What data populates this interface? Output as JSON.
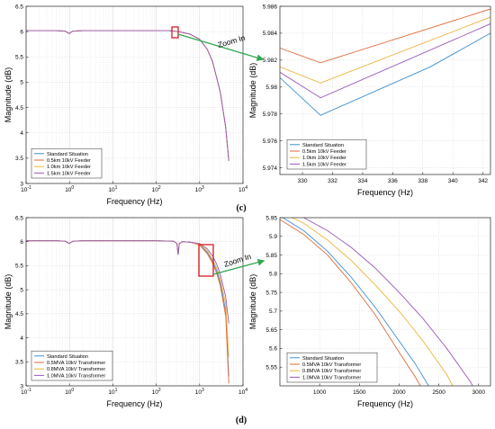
{
  "figure": {
    "panel_labels": {
      "c": "(c)",
      "d": "(d)"
    },
    "zoom_text": "Zoom In"
  },
  "colors": {
    "standard": "#3E8FD0",
    "s2": "#E06A3A",
    "s3": "#EDB33A",
    "s4": "#9B59B6",
    "highlight": "#D81B1B",
    "arrow": "#2FA84F"
  },
  "chart_data": [
    {
      "id": "c-main",
      "type": "line",
      "xscale": "log",
      "xlim": [
        0.1,
        10000
      ],
      "ylim": [
        3,
        6.5
      ],
      "xlabel": "Frequency (Hz)",
      "ylabel": "Magnitude (dB)",
      "xticks": [
        0.1,
        1,
        10,
        100,
        1000,
        10000
      ],
      "xtick_labels": [
        "10^-1",
        "10^0",
        "10^1",
        "10^2",
        "10^3",
        "10^4"
      ],
      "yticks": [
        3,
        3.5,
        4,
        4.5,
        5,
        5.5,
        6,
        6.5
      ],
      "ytick_labels": [
        "3",
        "3.5",
        "4",
        "4.5",
        "5",
        "5.5",
        "6",
        "6.5"
      ],
      "legend": "bottom-left",
      "grid": true,
      "series": [
        {
          "name": "Standard Situation",
          "x": [
            0.1,
            0.5,
            0.8,
            0.95,
            1.0,
            1.05,
            1.2,
            2,
            10,
            100,
            200,
            330,
            600,
            1000,
            1500,
            2000,
            3000,
            4000,
            4700
          ],
          "y": [
            6.02,
            6.02,
            6.01,
            5.97,
            5.96,
            5.98,
            6.01,
            6.02,
            6.02,
            6.02,
            6.02,
            6.0,
            5.95,
            5.85,
            5.65,
            5.4,
            4.8,
            4.1,
            3.45
          ]
        },
        {
          "name": "0.5km 10kV Feeder",
          "x": [
            0.1,
            0.5,
            0.8,
            0.95,
            1.0,
            1.05,
            1.2,
            2,
            10,
            100,
            200,
            330,
            600,
            1000,
            1500,
            2000,
            3000,
            4000,
            4700
          ],
          "y": [
            6.02,
            6.02,
            6.01,
            5.97,
            5.96,
            5.98,
            6.01,
            6.02,
            6.02,
            6.02,
            6.02,
            6.0,
            5.95,
            5.85,
            5.65,
            5.4,
            4.8,
            4.1,
            3.45
          ]
        },
        {
          "name": "1.0km 10kV Feeder",
          "x": [
            0.1,
            0.5,
            0.8,
            0.95,
            1.0,
            1.05,
            1.2,
            2,
            10,
            100,
            200,
            330,
            600,
            1000,
            1500,
            2000,
            3000,
            4000,
            4700
          ],
          "y": [
            6.02,
            6.02,
            6.01,
            5.97,
            5.96,
            5.98,
            6.01,
            6.02,
            6.02,
            6.02,
            6.02,
            6.0,
            5.95,
            5.85,
            5.65,
            5.4,
            4.8,
            4.1,
            3.45
          ]
        },
        {
          "name": "1.5km 10kV Feeder",
          "x": [
            0.1,
            0.5,
            0.8,
            0.95,
            1.0,
            1.05,
            1.2,
            2,
            10,
            100,
            200,
            330,
            600,
            1000,
            1500,
            2000,
            3000,
            4000,
            4700
          ],
          "y": [
            6.02,
            6.02,
            6.01,
            5.97,
            5.96,
            5.98,
            6.01,
            6.02,
            6.02,
            6.02,
            6.02,
            6.0,
            5.95,
            5.85,
            5.65,
            5.4,
            4.8,
            4.1,
            3.45
          ]
        }
      ]
    },
    {
      "id": "c-zoom",
      "type": "line",
      "xscale": "linear",
      "xlim": [
        328.5,
        342.5
      ],
      "ylim": [
        5.9735,
        5.986
      ],
      "xlabel": "Frequency (Hz)",
      "ylabel": "Magnitude (dB)",
      "xticks": [
        330,
        332,
        334,
        336,
        338,
        340,
        342
      ],
      "xtick_labels": [
        "330",
        "332",
        "334",
        "336",
        "338",
        "340",
        "342"
      ],
      "yticks": [
        5.974,
        5.976,
        5.978,
        5.98,
        5.982,
        5.984,
        5.986
      ],
      "ytick_labels": [
        "5.974",
        "5.976",
        "5.978",
        "5.98",
        "5.982",
        "5.984",
        "5.986"
      ],
      "legend": "bottom-left",
      "grid": true,
      "series": [
        {
          "name": "Standard Situation",
          "x": [
            328.5,
            331.2,
            338.5,
            342.5
          ],
          "y": [
            5.9807,
            5.9779,
            5.9815,
            5.984
          ]
        },
        {
          "name": "0.5km 10kV Feeder",
          "x": [
            328.5,
            331.2,
            342.5
          ],
          "y": [
            5.9829,
            5.9818,
            5.9858
          ]
        },
        {
          "name": "1.0km 10kV Feeder",
          "x": [
            328.5,
            331.2,
            342.5
          ],
          "y": [
            5.9815,
            5.9803,
            5.9852
          ]
        },
        {
          "name": "1.5km 10kV Feeder",
          "x": [
            328.5,
            331.2,
            342.5
          ],
          "y": [
            5.9811,
            5.9792,
            5.9847
          ]
        }
      ]
    },
    {
      "id": "d-main",
      "type": "line",
      "xscale": "log",
      "xlim": [
        0.1,
        10000
      ],
      "ylim": [
        3,
        6.5
      ],
      "xlabel": "Frequency (Hz)",
      "ylabel": "Magnitude (dB)",
      "xticks": [
        0.1,
        1,
        10,
        100,
        1000,
        10000
      ],
      "xtick_labels": [
        "10^-1",
        "10^0",
        "10^1",
        "10^2",
        "10^3",
        "10^4"
      ],
      "yticks": [
        3,
        3.5,
        4,
        4.5,
        5,
        5.5,
        6,
        6.5
      ],
      "ytick_labels": [
        "3",
        "3.5",
        "4",
        "4.5",
        "5",
        "5.5",
        "6",
        "6.5"
      ],
      "legend": "bottom-left",
      "grid": true,
      "series": [
        {
          "name": "Standard Situation",
          "x": [
            0.1,
            0.5,
            0.8,
            0.95,
            1.0,
            1.05,
            1.2,
            2,
            10,
            100,
            250,
            300,
            320,
            340,
            400,
            600,
            1000,
            1500,
            2000,
            2500,
            3000,
            4000,
            4700
          ],
          "y": [
            6.02,
            6.02,
            6.01,
            5.97,
            5.96,
            5.98,
            6.01,
            6.02,
            6.02,
            6.02,
            6.01,
            5.96,
            5.73,
            5.96,
            6.0,
            5.99,
            5.94,
            5.78,
            5.59,
            5.38,
            5.15,
            4.55,
            3.2
          ]
        },
        {
          "name": "0.5MVA 10kV Transformer",
          "x": [
            0.1,
            0.5,
            0.8,
            0.95,
            1.0,
            1.05,
            1.2,
            2,
            10,
            100,
            250,
            300,
            320,
            340,
            400,
            600,
            1000,
            1500,
            2000,
            2500,
            3000,
            4000,
            4700
          ],
          "y": [
            6.02,
            6.02,
            6.01,
            5.97,
            5.96,
            5.98,
            6.01,
            6.02,
            6.02,
            6.02,
            6.01,
            5.96,
            5.73,
            5.96,
            6.0,
            5.99,
            5.93,
            5.75,
            5.55,
            5.33,
            5.08,
            4.45,
            3.05
          ]
        },
        {
          "name": "0.8MVA 10kV Transformer",
          "x": [
            0.1,
            0.5,
            0.8,
            0.95,
            1.0,
            1.05,
            1.2,
            2,
            10,
            100,
            250,
            300,
            320,
            340,
            400,
            600,
            1000,
            1500,
            2000,
            2500,
            3000,
            4000,
            4700
          ],
          "y": [
            6.02,
            6.02,
            6.01,
            5.97,
            5.96,
            5.98,
            6.01,
            6.02,
            6.02,
            6.02,
            6.01,
            5.96,
            5.73,
            5.96,
            6.0,
            5.99,
            5.95,
            5.81,
            5.63,
            5.44,
            5.22,
            4.7,
            3.6
          ]
        },
        {
          "name": "1.0MVA 10kV Transformer",
          "x": [
            0.1,
            0.5,
            0.8,
            0.95,
            1.0,
            1.05,
            1.2,
            2,
            10,
            100,
            250,
            300,
            320,
            340,
            400,
            600,
            1000,
            1500,
            2000,
            2500,
            3000,
            4000,
            4700
          ],
          "y": [
            6.02,
            6.02,
            6.01,
            5.97,
            5.96,
            5.98,
            6.01,
            6.02,
            6.02,
            6.02,
            6.01,
            5.96,
            5.73,
            5.96,
            6.0,
            5.99,
            5.96,
            5.85,
            5.7,
            5.52,
            5.32,
            4.85,
            4.3
          ]
        }
      ]
    },
    {
      "id": "d-zoom",
      "type": "line",
      "xscale": "linear",
      "xlim": [
        500,
        3150
      ],
      "ylim": [
        5.5,
        5.95
      ],
      "xlabel": "Frequency (Hz)",
      "ylabel": "Magnitude (dB)",
      "xticks": [
        1000,
        1500,
        2000,
        2500,
        3000
      ],
      "xtick_labels": [
        "1000",
        "1500",
        "2000",
        "2500",
        "3000"
      ],
      "yticks": [
        5.55,
        5.6,
        5.65,
        5.7,
        5.75,
        5.8,
        5.85,
        5.9,
        5.95
      ],
      "ytick_labels": [
        "5.55",
        "5.6",
        "5.65",
        "5.7",
        "5.75",
        "5.8",
        "5.85",
        "5.9",
        "5.95"
      ],
      "legend": "bottom-left",
      "grid": true,
      "series": [
        {
          "name": "Standard Situation",
          "x": [
            500,
            800,
            1100,
            1400,
            1700,
            2000,
            2200,
            2400
          ],
          "y": [
            5.955,
            5.915,
            5.86,
            5.79,
            5.71,
            5.62,
            5.56,
            5.49
          ]
        },
        {
          "name": "0.5MVA 10kV Transformer",
          "x": [
            500,
            800,
            1100,
            1400,
            1700,
            2000,
            2200,
            2350
          ],
          "y": [
            5.945,
            5.905,
            5.85,
            5.775,
            5.69,
            5.59,
            5.525,
            5.47
          ]
        },
        {
          "name": "0.8MVA 10kV Transformer",
          "x": [
            500,
            800,
            1100,
            1400,
            1700,
            2000,
            2300,
            2600,
            2700
          ],
          "y": [
            5.965,
            5.935,
            5.89,
            5.835,
            5.77,
            5.7,
            5.62,
            5.53,
            5.49
          ]
        },
        {
          "name": "1.0MVA 10kV Transformer",
          "x": [
            500,
            800,
            1100,
            1400,
            1700,
            2000,
            2300,
            2600,
            2900,
            3000
          ],
          "y": [
            5.975,
            5.95,
            5.915,
            5.87,
            5.815,
            5.75,
            5.68,
            5.6,
            5.51,
            5.47
          ]
        }
      ]
    }
  ]
}
